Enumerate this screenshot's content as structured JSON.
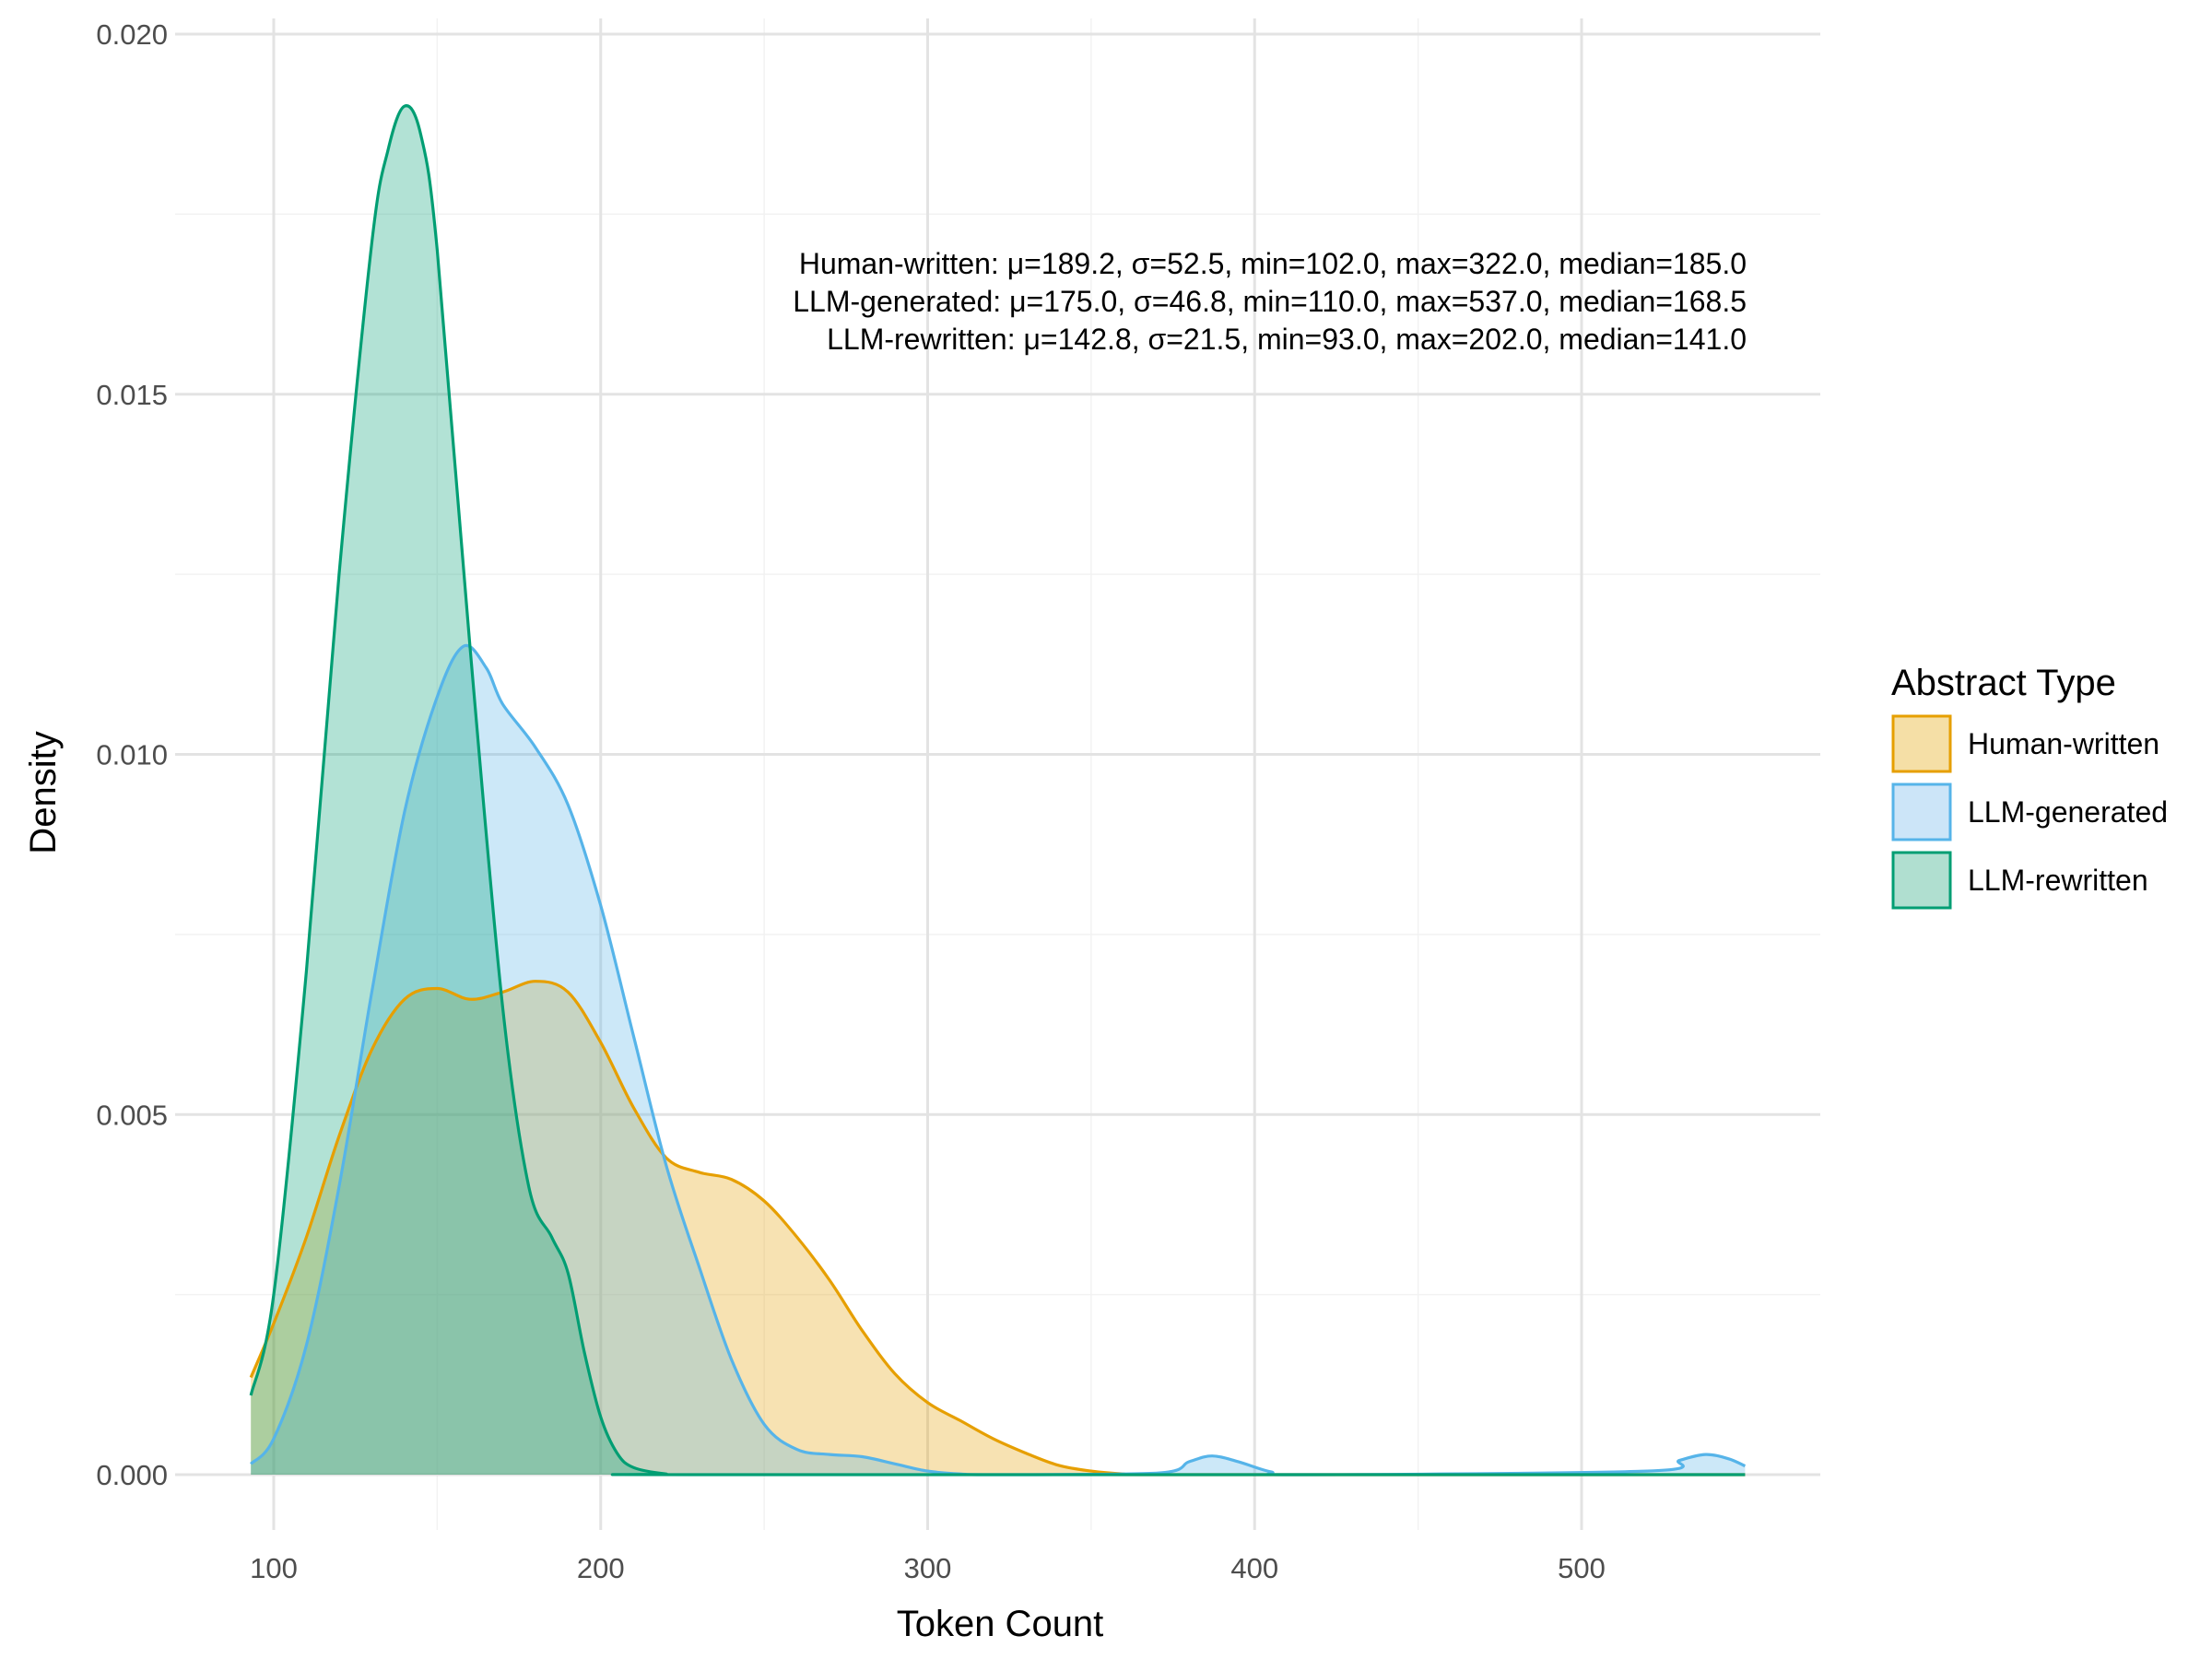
{
  "chart_data": {
    "type": "area",
    "title": "",
    "xlabel": "Token Count",
    "ylabel": "Density",
    "xlim": [
      93,
      550
    ],
    "ylim": [
      0,
      0.02
    ],
    "x_ticks": [
      100,
      200,
      300,
      400,
      500
    ],
    "x_tick_labels": [
      "100",
      "200",
      "300",
      "400",
      "500"
    ],
    "y_ticks": [
      0,
      0.005,
      0.01,
      0.015,
      0.02
    ],
    "y_tick_labels": [
      "0.000",
      "0.005",
      "0.010",
      "0.015",
      "0.020"
    ],
    "grid": true,
    "legend": {
      "title": "Abstract Type",
      "position": "right"
    },
    "annotations": [
      "Human-written: μ=189.2, σ=52.5, min=102.0, max=322.0, median=185.0",
      "LLM-generated: μ=175.0, σ=46.8, min=110.0, max=537.0, median=168.5",
      "LLM-rewritten: μ=142.8, σ=21.5, min=93.0, max=202.0, median=141.0"
    ],
    "series": [
      {
        "name": "Human-written",
        "color": "#E69F00",
        "fill": "#F5DFA6",
        "points": [
          [
            93,
            0.00135
          ],
          [
            100,
            0.0021
          ],
          [
            110,
            0.0033
          ],
          [
            120,
            0.0047
          ],
          [
            130,
            0.0059
          ],
          [
            140,
            0.0066
          ],
          [
            150,
            0.00675
          ],
          [
            160,
            0.0066
          ],
          [
            170,
            0.0067
          ],
          [
            180,
            0.00685
          ],
          [
            190,
            0.0067
          ],
          [
            200,
            0.006
          ],
          [
            210,
            0.0051
          ],
          [
            220,
            0.0044
          ],
          [
            230,
            0.0042
          ],
          [
            240,
            0.0041
          ],
          [
            250,
            0.0038
          ],
          [
            260,
            0.0033
          ],
          [
            270,
            0.0027
          ],
          [
            280,
            0.002
          ],
          [
            290,
            0.0014
          ],
          [
            300,
            0.001
          ],
          [
            310,
            0.00075
          ],
          [
            320,
            0.0005
          ],
          [
            330,
            0.0003
          ],
          [
            340,
            0.00013
          ],
          [
            350,
            5e-05
          ],
          [
            360,
            1e-05
          ],
          [
            370,
            0
          ],
          [
            550,
            0
          ]
        ]
      },
      {
        "name": "LLM-generated",
        "color": "#56B4E9",
        "fill": "#CCE5F8",
        "points": [
          [
            93,
            0.00015
          ],
          [
            100,
            0.0005
          ],
          [
            110,
            0.0018
          ],
          [
            120,
            0.004
          ],
          [
            130,
            0.0067
          ],
          [
            140,
            0.0092
          ],
          [
            150,
            0.0108
          ],
          [
            158,
            0.0115
          ],
          [
            165,
            0.0112
          ],
          [
            170,
            0.0107
          ],
          [
            180,
            0.0101
          ],
          [
            190,
            0.0093
          ],
          [
            200,
            0.0079
          ],
          [
            210,
            0.0061
          ],
          [
            220,
            0.0043
          ],
          [
            230,
            0.0029
          ],
          [
            240,
            0.0016
          ],
          [
            250,
            0.0007
          ],
          [
            260,
            0.00035
          ],
          [
            270,
            0.00028
          ],
          [
            280,
            0.00025
          ],
          [
            290,
            0.00015
          ],
          [
            300,
            5e-05
          ],
          [
            310,
            1e-05
          ],
          [
            320,
            0
          ],
          [
            370,
            2e-05
          ],
          [
            380,
            0.00018
          ],
          [
            387,
            0.00026
          ],
          [
            395,
            0.00018
          ],
          [
            405,
            4e-05
          ],
          [
            415,
            0
          ],
          [
            520,
            5e-05
          ],
          [
            530,
            0.0002
          ],
          [
            538,
            0.00028
          ],
          [
            545,
            0.00022
          ],
          [
            550,
            0.00012
          ]
        ]
      },
      {
        "name": "LLM-rewritten",
        "color": "#009E73",
        "fill": "#B0DFD0",
        "points": [
          [
            93,
            0.0011
          ],
          [
            100,
            0.0025
          ],
          [
            110,
            0.007
          ],
          [
            120,
            0.0125
          ],
          [
            130,
            0.0171
          ],
          [
            135,
            0.0184
          ],
          [
            140,
            0.019
          ],
          [
            145,
            0.0186
          ],
          [
            150,
            0.017
          ],
          [
            160,
            0.0115
          ],
          [
            170,
            0.0065
          ],
          [
            178,
            0.004
          ],
          [
            185,
            0.0033
          ],
          [
            190,
            0.0028
          ],
          [
            195,
            0.0017
          ],
          [
            200,
            0.0008
          ],
          [
            205,
            0.0003
          ],
          [
            210,
            0.0001
          ],
          [
            220,
            1e-05
          ],
          [
            230,
            0
          ],
          [
            550,
            0
          ]
        ]
      }
    ]
  }
}
